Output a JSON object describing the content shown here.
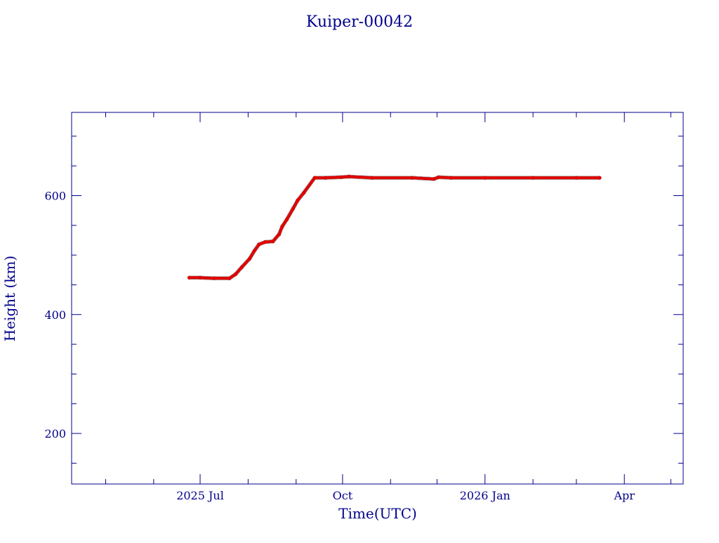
{
  "chart_data": {
    "type": "line",
    "title": "Kuiper-00042",
    "xlabel": "Time(UTC)",
    "ylabel": "Height (km)",
    "x_tick_labels": [
      {
        "date": "2025-07-01",
        "label": "2025 Jul"
      },
      {
        "date": "2025-10-01",
        "label": "Oct"
      },
      {
        "date": "2026-01-01",
        "label": "2026 Jan"
      },
      {
        "date": "2026-04-01",
        "label": "Apr"
      }
    ],
    "x_minor_tick_dates": [
      "2025-05-01",
      "2025-06-01",
      "2025-08-01",
      "2025-09-01",
      "2025-11-01",
      "2025-12-01",
      "2026-02-01",
      "2026-03-01",
      "2026-05-01"
    ],
    "y_ticks": [
      200,
      400,
      600
    ],
    "y_minor_step": 50,
    "xlim": [
      "2025-04-09",
      "2026-05-09"
    ],
    "ylim": [
      115,
      740
    ],
    "grid": false,
    "colors": {
      "axis": "#00008b",
      "series": "#e00000",
      "series_shadow": "#404040"
    },
    "series": [
      {
        "x": [
          "2025-06-24",
          "2025-07-01",
          "2025-07-10",
          "2025-07-20",
          "2025-07-24",
          "2025-07-28",
          "2025-08-02",
          "2025-08-05",
          "2025-08-08",
          "2025-08-12",
          "2025-08-17",
          "2025-08-21",
          "2025-08-23",
          "2025-08-26",
          "2025-08-30",
          "2025-09-02",
          "2025-09-06",
          "2025-09-13",
          "2025-09-20",
          "2025-09-30",
          "2025-10-05",
          "2025-10-20",
          "2025-11-15",
          "2025-11-29",
          "2025-12-02",
          "2025-12-10",
          "2026-01-01",
          "2026-02-01",
          "2026-03-01",
          "2026-03-16"
        ],
        "y": [
          462,
          462,
          461,
          461,
          468,
          480,
          494,
          507,
          518,
          522,
          523,
          535,
          548,
          560,
          578,
          592,
          605,
          630,
          630,
          631,
          632,
          630,
          630,
          628,
          631,
          630,
          630,
          630,
          630,
          630
        ]
      }
    ]
  }
}
